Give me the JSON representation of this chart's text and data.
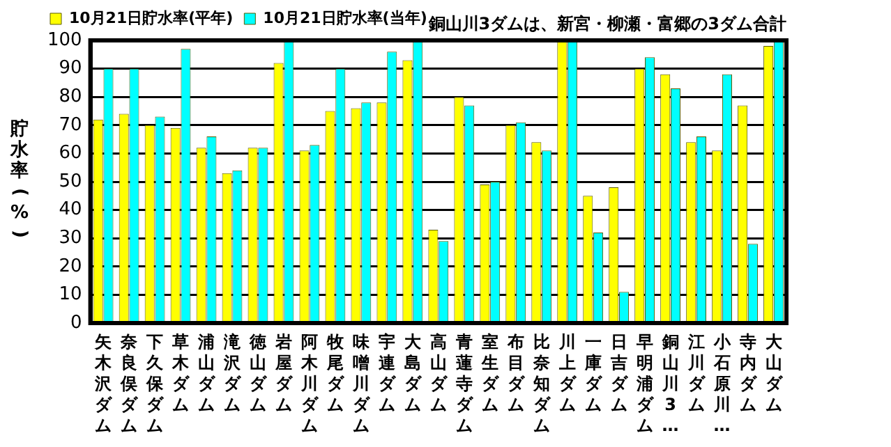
{
  "chart_data": {
    "type": "bar",
    "categories": [
      "矢木沢ダム",
      "奈良俣ダム",
      "下久保ダム",
      "草木ダム",
      "浦山ダム",
      "滝沢ダム",
      "徳山ダム",
      "岩屋ダム",
      "阿木川ダム",
      "牧尾ダム",
      "味噌川ダム",
      "宇連ダム",
      "大島ダム",
      "高山ダム",
      "青蓮寺ダム",
      "室生ダム",
      "布目ダム",
      "比奈知ダム",
      "川上ダム",
      "一庫ダム",
      "日吉ダム",
      "早明浦ダム",
      "銅山川3…",
      "江川ダム",
      "小石原川…",
      "寺内ダム",
      "大山ダム"
    ],
    "series": [
      {
        "name": "10月21日貯水率(平年)",
        "color": "#ffff00",
        "values": [
          72,
          74,
          70,
          69,
          62,
          53,
          62,
          92,
          61,
          75,
          76,
          78,
          93,
          33,
          80,
          49,
          70,
          64,
          100,
          45,
          48,
          90,
          88,
          64,
          61,
          77,
          98
        ]
      },
      {
        "name": "10月21日貯水率(当年)",
        "color": "#00ffff",
        "values": [
          90,
          90,
          73,
          97,
          66,
          54,
          62,
          100,
          63,
          90,
          78,
          96,
          100,
          29,
          77,
          50,
          71,
          61,
          100,
          32,
          11,
          94,
          83,
          66,
          88,
          28,
          100
        ]
      }
    ],
    "ylabel": "貯水率(%)",
    "ylim": [
      0,
      100
    ],
    "yticks": [
      0,
      10,
      20,
      30,
      40,
      50,
      60,
      70,
      80,
      90,
      100
    ],
    "grid": "y",
    "legend": "top left",
    "annotations": [
      "銅山川3ダムは、新宮・柳瀬・富郷の3ダム合計"
    ]
  }
}
